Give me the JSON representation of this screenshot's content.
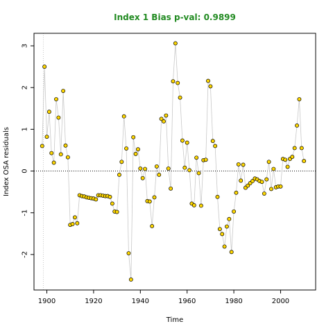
{
  "chart_data": {
    "type": "scatter",
    "title": "Index 1 Bias p-val: 0.9899",
    "xlabel": "Time",
    "ylabel": "Index OSA residuals",
    "xlim": [
      1894.5,
      2015
    ],
    "ylim": [
      -2.85,
      3.3
    ],
    "x_ticks": [
      1900,
      1920,
      1940,
      1960,
      1980,
      2000
    ],
    "y_ticks": [
      -2,
      -1,
      0,
      1,
      2,
      3
    ],
    "reference_hline": 0,
    "reference_vline": 1898.5,
    "connect_points": true,
    "colors": {
      "title": "#228B22",
      "point_fill": "#FFD700",
      "point_stroke": "#000000",
      "line": "#C8C8C8",
      "ref_line": "#000000",
      "vline": "#C8C8C8"
    },
    "points": [
      {
        "x": 1898,
        "y": 0.6
      },
      {
        "x": 1899,
        "y": 2.5
      },
      {
        "x": 1900,
        "y": 0.82
      },
      {
        "x": 1901,
        "y": 1.42
      },
      {
        "x": 1902,
        "y": 0.43
      },
      {
        "x": 1903,
        "y": 0.2
      },
      {
        "x": 1904,
        "y": 1.72
      },
      {
        "x": 1905,
        "y": 1.28
      },
      {
        "x": 1906,
        "y": 0.4
      },
      {
        "x": 1907,
        "y": 1.92
      },
      {
        "x": 1908,
        "y": 0.61
      },
      {
        "x": 1909,
        "y": 0.33
      },
      {
        "x": 1910,
        "y": -1.29
      },
      {
        "x": 1911,
        "y": -1.27
      },
      {
        "x": 1912,
        "y": -1.11
      },
      {
        "x": 1913,
        "y": -1.25
      },
      {
        "x": 1914,
        "y": -0.58
      },
      {
        "x": 1915,
        "y": -0.6
      },
      {
        "x": 1916,
        "y": -0.61
      },
      {
        "x": 1917,
        "y": -0.63
      },
      {
        "x": 1918,
        "y": -0.64
      },
      {
        "x": 1919,
        "y": -0.65
      },
      {
        "x": 1920,
        "y": -0.66
      },
      {
        "x": 1921,
        "y": -0.68
      },
      {
        "x": 1922,
        "y": -0.58
      },
      {
        "x": 1923,
        "y": -0.58
      },
      {
        "x": 1924,
        "y": -0.59
      },
      {
        "x": 1925,
        "y": -0.6
      },
      {
        "x": 1926,
        "y": -0.6
      },
      {
        "x": 1927,
        "y": -0.62
      },
      {
        "x": 1928,
        "y": -0.78
      },
      {
        "x": 1929,
        "y": -0.97
      },
      {
        "x": 1930,
        "y": -0.98
      },
      {
        "x": 1931,
        "y": -0.09
      },
      {
        "x": 1932,
        "y": 0.22
      },
      {
        "x": 1933,
        "y": 1.31
      },
      {
        "x": 1934,
        "y": 0.54
      },
      {
        "x": 1935,
        "y": -1.97
      },
      {
        "x": 1936,
        "y": -2.6
      },
      {
        "x": 1937,
        "y": 0.81
      },
      {
        "x": 1938,
        "y": 0.41
      },
      {
        "x": 1939,
        "y": 0.52
      },
      {
        "x": 1940,
        "y": 0.06
      },
      {
        "x": 1941,
        "y": -0.17
      },
      {
        "x": 1942,
        "y": 0.05
      },
      {
        "x": 1943,
        "y": -0.72
      },
      {
        "x": 1944,
        "y": -0.73
      },
      {
        "x": 1945,
        "y": -1.32
      },
      {
        "x": 1946,
        "y": -0.63
      },
      {
        "x": 1947,
        "y": 0.11
      },
      {
        "x": 1948,
        "y": -0.09
      },
      {
        "x": 1949,
        "y": 1.25
      },
      {
        "x": 1950,
        "y": 1.19
      },
      {
        "x": 1951,
        "y": 1.33
      },
      {
        "x": 1952,
        "y": 0.06
      },
      {
        "x": 1953,
        "y": -0.42
      },
      {
        "x": 1954,
        "y": 2.15
      },
      {
        "x": 1955,
        "y": 3.06
      },
      {
        "x": 1956,
        "y": 2.11
      },
      {
        "x": 1957,
        "y": 1.76
      },
      {
        "x": 1958,
        "y": 0.73
      },
      {
        "x": 1959,
        "y": 0.08
      },
      {
        "x": 1960,
        "y": 0.68
      },
      {
        "x": 1961,
        "y": 0.02
      },
      {
        "x": 1962,
        "y": -0.78
      },
      {
        "x": 1963,
        "y": -0.82
      },
      {
        "x": 1964,
        "y": 0.32
      },
      {
        "x": 1965,
        "y": -0.05
      },
      {
        "x": 1966,
        "y": -0.83
      },
      {
        "x": 1967,
        "y": 0.26
      },
      {
        "x": 1968,
        "y": 0.27
      },
      {
        "x": 1969,
        "y": 2.16
      },
      {
        "x": 1970,
        "y": 2.03
      },
      {
        "x": 1971,
        "y": 0.72
      },
      {
        "x": 1972,
        "y": 0.6
      },
      {
        "x": 1973,
        "y": -0.62
      },
      {
        "x": 1974,
        "y": -1.39
      },
      {
        "x": 1975,
        "y": -1.51
      },
      {
        "x": 1976,
        "y": -1.81
      },
      {
        "x": 1977,
        "y": -1.33
      },
      {
        "x": 1978,
        "y": -1.15
      },
      {
        "x": 1979,
        "y": -1.94
      },
      {
        "x": 1980,
        "y": -0.97
      },
      {
        "x": 1981,
        "y": -0.52
      },
      {
        "x": 1982,
        "y": 0.16
      },
      {
        "x": 1983,
        "y": -0.23
      },
      {
        "x": 1984,
        "y": 0.15
      },
      {
        "x": 1985,
        "y": -0.4
      },
      {
        "x": 1986,
        "y": -0.35
      },
      {
        "x": 1987,
        "y": -0.29
      },
      {
        "x": 1988,
        "y": -0.24
      },
      {
        "x": 1989,
        "y": -0.18
      },
      {
        "x": 1990,
        "y": -0.2
      },
      {
        "x": 1991,
        "y": -0.24
      },
      {
        "x": 1992,
        "y": -0.26
      },
      {
        "x": 1993,
        "y": -0.54
      },
      {
        "x": 1994,
        "y": -0.2
      },
      {
        "x": 1995,
        "y": 0.22
      },
      {
        "x": 1996,
        "y": -0.43
      },
      {
        "x": 1997,
        "y": 0.05
      },
      {
        "x": 1998,
        "y": -0.39
      },
      {
        "x": 1999,
        "y": -0.37
      },
      {
        "x": 2000,
        "y": -0.37
      },
      {
        "x": 2001,
        "y": 0.29
      },
      {
        "x": 2002,
        "y": 0.27
      },
      {
        "x": 2003,
        "y": 0.1
      },
      {
        "x": 2004,
        "y": 0.29
      },
      {
        "x": 2005,
        "y": 0.34
      },
      {
        "x": 2006,
        "y": 0.55
      },
      {
        "x": 2007,
        "y": 1.09
      },
      {
        "x": 2008,
        "y": 1.72
      },
      {
        "x": 2009,
        "y": 0.55
      },
      {
        "x": 2010,
        "y": 0.24
      }
    ]
  }
}
